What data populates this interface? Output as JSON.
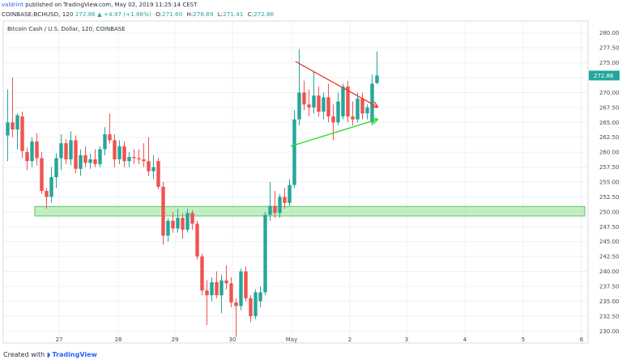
{
  "header": {
    "author": "valdrint",
    "published_text": "published on TradingView.com, May 02, 2019 11:25:14 CEST",
    "symbol": "COINBASE:BCHUSD, 120",
    "last": "272.86",
    "change": "▲ +4.97 (+1.86%)",
    "o_label": "O:",
    "o_val": "271.60",
    "h_label": "H:",
    "h_val": "276.89",
    "l_label": "L:",
    "l_val": "271.41",
    "c_label": "C:",
    "c_val": "272.86"
  },
  "footer": {
    "created_with": "Created with",
    "brand": "TradingView"
  },
  "colors": {
    "up": "#26a69a",
    "down": "#ef5350",
    "zone": "#8ee68e",
    "zone_border": "#4caf50",
    "resistance": "#e53935",
    "support": "#22dd22",
    "grid": "#eef0f4"
  },
  "chart_data": {
    "type": "candlestick",
    "title": "Bitcoin Cash / U.S. Dollar, 120, COINBASE",
    "x_ticks": [
      "27",
      "28",
      "29",
      "30",
      "May",
      "2",
      "3",
      "4",
      "5",
      "6"
    ],
    "y_ticks": [
      "230.00",
      "232.50",
      "235.00",
      "237.50",
      "240.00",
      "242.50",
      "245.00",
      "247.50",
      "250.00",
      "252.50",
      "255.00",
      "257.50",
      "260.00",
      "262.50",
      "265.00",
      "267.50",
      "270.00",
      "272.50",
      "275.00",
      "277.50",
      "280.00"
    ],
    "ylim": [
      228.0,
      282.0
    ],
    "last_price": "272.86",
    "support_zone": [
      249.3,
      250.9
    ],
    "resistance_line": [
      [
        0.0,
        275.2
      ],
      [
        5.25,
        267.6
      ]
    ],
    "support_line": [
      [
        0.0,
        261.0
      ],
      [
        5.25,
        265.5
      ]
    ],
    "candles": [
      {
        "x": 0.0,
        "o": 262.8,
        "h": 270.5,
        "l": 258.5,
        "c": 265.0
      },
      {
        "x": 0.25,
        "o": 265.0,
        "h": 272.5,
        "l": 262.5,
        "c": 263.8
      },
      {
        "x": 0.5,
        "o": 263.8,
        "h": 266.5,
        "l": 260.5,
        "c": 266.2
      },
      {
        "x": 0.75,
        "o": 266.0,
        "h": 266.8,
        "l": 259.0,
        "c": 260.2
      },
      {
        "x": 1.0,
        "o": 260.0,
        "h": 260.8,
        "l": 257.0,
        "c": 258.5
      },
      {
        "x": 1.25,
        "o": 258.5,
        "h": 262.5,
        "l": 257.5,
        "c": 261.8
      },
      {
        "x": 1.5,
        "o": 261.8,
        "h": 263.2,
        "l": 257.8,
        "c": 259.0
      },
      {
        "x": 1.75,
        "o": 259.0,
        "h": 260.0,
        "l": 253.0,
        "c": 253.5
      },
      {
        "x": 2.0,
        "o": 253.5,
        "h": 254.0,
        "l": 250.5,
        "c": 252.5
      },
      {
        "x": 2.25,
        "o": 252.5,
        "h": 257.5,
        "l": 251.5,
        "c": 255.8
      },
      {
        "x": 2.5,
        "o": 255.8,
        "h": 259.8,
        "l": 254.0,
        "c": 259.0
      },
      {
        "x": 2.75,
        "o": 259.0,
        "h": 263.0,
        "l": 257.0,
        "c": 261.5
      },
      {
        "x": 3.0,
        "o": 261.5,
        "h": 262.2,
        "l": 258.0,
        "c": 258.8
      },
      {
        "x": 3.25,
        "o": 258.8,
        "h": 263.5,
        "l": 257.8,
        "c": 262.0
      },
      {
        "x": 3.5,
        "o": 262.0,
        "h": 262.8,
        "l": 256.5,
        "c": 257.2
      },
      {
        "x": 3.75,
        "o": 257.2,
        "h": 260.5,
        "l": 256.0,
        "c": 259.5
      },
      {
        "x": 4.0,
        "o": 259.5,
        "h": 261.0,
        "l": 257.5,
        "c": 258.2
      },
      {
        "x": 4.25,
        "o": 258.2,
        "h": 259.8,
        "l": 257.2,
        "c": 258.8
      },
      {
        "x": 4.5,
        "o": 258.8,
        "h": 260.5,
        "l": 257.5,
        "c": 258.0
      },
      {
        "x": 4.75,
        "o": 258.0,
        "h": 261.0,
        "l": 257.5,
        "c": 260.5
      },
      {
        "x": 5.0,
        "o": 260.5,
        "h": 264.2,
        "l": 259.5,
        "c": 263.0
      },
      {
        "x": 5.25,
        "o": 263.0,
        "h": 266.5,
        "l": 261.5,
        "c": 262.0
      },
      {
        "x": 5.5,
        "o": 262.0,
        "h": 263.0,
        "l": 257.5,
        "c": 258.8
      },
      {
        "x": 5.75,
        "o": 258.8,
        "h": 262.0,
        "l": 258.0,
        "c": 261.0
      },
      {
        "x": 6.0,
        "o": 261.0,
        "h": 261.8,
        "l": 257.5,
        "c": 258.5
      },
      {
        "x": 6.25,
        "o": 258.5,
        "h": 260.0,
        "l": 257.5,
        "c": 259.2
      },
      {
        "x": 6.5,
        "o": 259.2,
        "h": 260.5,
        "l": 258.0,
        "c": 259.0
      },
      {
        "x": 6.75,
        "o": 259.0,
        "h": 260.5,
        "l": 258.0,
        "c": 258.8
      },
      {
        "x": 7.0,
        "o": 258.8,
        "h": 261.5,
        "l": 257.5,
        "c": 258.5
      },
      {
        "x": 7.25,
        "o": 258.5,
        "h": 262.5,
        "l": 256.0,
        "c": 256.8
      },
      {
        "x": 7.5,
        "o": 256.8,
        "h": 259.5,
        "l": 255.5,
        "c": 257.5
      },
      {
        "x": 7.75,
        "o": 258.5,
        "h": 259.0,
        "l": 253.8,
        "c": 254.2
      },
      {
        "x": 8.0,
        "o": 254.2,
        "h": 255.0,
        "l": 244.5,
        "c": 246.0
      },
      {
        "x": 8.25,
        "o": 246.0,
        "h": 249.0,
        "l": 245.0,
        "c": 248.5
      },
      {
        "x": 8.5,
        "o": 248.5,
        "h": 250.0,
        "l": 246.5,
        "c": 247.2
      },
      {
        "x": 8.75,
        "o": 247.2,
        "h": 250.5,
        "l": 246.5,
        "c": 249.0
      },
      {
        "x": 9.0,
        "o": 249.0,
        "h": 249.8,
        "l": 245.5,
        "c": 247.0
      },
      {
        "x": 9.25,
        "o": 247.0,
        "h": 250.5,
        "l": 246.5,
        "c": 249.8
      },
      {
        "x": 9.5,
        "o": 249.8,
        "h": 250.3,
        "l": 247.0,
        "c": 248.0
      },
      {
        "x": 9.75,
        "o": 248.0,
        "h": 248.5,
        "l": 242.0,
        "c": 242.5
      },
      {
        "x": 10.0,
        "o": 242.5,
        "h": 243.0,
        "l": 236.0,
        "c": 236.8
      },
      {
        "x": 10.25,
        "o": 236.8,
        "h": 238.5,
        "l": 231.0,
        "c": 236.0
      },
      {
        "x": 10.5,
        "o": 236.0,
        "h": 239.0,
        "l": 235.0,
        "c": 238.2
      },
      {
        "x": 10.75,
        "o": 238.2,
        "h": 240.0,
        "l": 235.5,
        "c": 236.0
      },
      {
        "x": 11.0,
        "o": 236.0,
        "h": 239.5,
        "l": 233.0,
        "c": 238.5
      },
      {
        "x": 11.25,
        "o": 238.5,
        "h": 241.0,
        "l": 237.0,
        "c": 238.0
      },
      {
        "x": 11.5,
        "o": 238.0,
        "h": 239.0,
        "l": 234.0,
        "c": 234.8
      },
      {
        "x": 11.75,
        "o": 234.8,
        "h": 235.5,
        "l": 229.0,
        "c": 234.2
      },
      {
        "x": 12.0,
        "o": 234.2,
        "h": 240.5,
        "l": 233.5,
        "c": 240.0
      },
      {
        "x": 12.25,
        "o": 240.0,
        "h": 240.8,
        "l": 235.0,
        "c": 235.5
      },
      {
        "x": 12.5,
        "o": 235.5,
        "h": 236.0,
        "l": 231.5,
        "c": 232.5
      },
      {
        "x": 12.75,
        "o": 232.5,
        "h": 237.0,
        "l": 232.0,
        "c": 236.5
      },
      {
        "x": 13.0,
        "o": 235.0,
        "h": 237.5,
        "l": 234.0,
        "c": 236.5
      },
      {
        "x": 13.25,
        "o": 236.5,
        "h": 250.0,
        "l": 236.0,
        "c": 249.5
      },
      {
        "x": 13.5,
        "o": 249.5,
        "h": 255.0,
        "l": 248.5,
        "c": 251.0
      },
      {
        "x": 13.75,
        "o": 251.0,
        "h": 253.5,
        "l": 249.0,
        "c": 249.8
      },
      {
        "x": 14.0,
        "o": 249.8,
        "h": 253.0,
        "l": 249.0,
        "c": 252.5
      },
      {
        "x": 14.25,
        "o": 252.5,
        "h": 254.0,
        "l": 250.5,
        "c": 251.5
      },
      {
        "x": 14.5,
        "o": 251.5,
        "h": 255.5,
        "l": 251.0,
        "c": 254.5
      },
      {
        "x": 14.75,
        "o": 254.5,
        "h": 267.0,
        "l": 254.0,
        "c": 265.5
      },
      {
        "x": 15.0,
        "o": 265.5,
        "h": 277.3,
        "l": 264.5,
        "c": 270.0
      },
      {
        "x": 15.25,
        "o": 270.0,
        "h": 272.0,
        "l": 267.0,
        "c": 268.0
      },
      {
        "x": 15.5,
        "o": 268.0,
        "h": 270.5,
        "l": 266.0,
        "c": 267.5
      },
      {
        "x": 15.75,
        "o": 267.5,
        "h": 273.5,
        "l": 266.5,
        "c": 269.5
      },
      {
        "x": 16.0,
        "o": 269.5,
        "h": 271.0,
        "l": 266.0,
        "c": 266.8
      },
      {
        "x": 16.25,
        "o": 266.8,
        "h": 270.0,
        "l": 265.5,
        "c": 269.2
      },
      {
        "x": 16.5,
        "o": 269.2,
        "h": 271.5,
        "l": 265.0,
        "c": 266.0
      },
      {
        "x": 16.75,
        "o": 266.0,
        "h": 268.0,
        "l": 262.0,
        "c": 265.0
      },
      {
        "x": 17.0,
        "o": 265.0,
        "h": 270.0,
        "l": 264.5,
        "c": 268.5
      },
      {
        "x": 17.25,
        "o": 266.0,
        "h": 271.5,
        "l": 265.5,
        "c": 271.0
      },
      {
        "x": 17.5,
        "o": 271.0,
        "h": 272.0,
        "l": 265.0,
        "c": 266.0
      },
      {
        "x": 17.75,
        "o": 266.0,
        "h": 268.5,
        "l": 264.5,
        "c": 265.5
      },
      {
        "x": 18.0,
        "o": 265.5,
        "h": 270.0,
        "l": 265.0,
        "c": 269.0
      },
      {
        "x": 18.25,
        "o": 269.0,
        "h": 270.0,
        "l": 265.5,
        "c": 266.5
      },
      {
        "x": 18.5,
        "o": 266.5,
        "h": 268.0,
        "l": 265.5,
        "c": 267.5
      },
      {
        "x": 18.75,
        "o": 265.0,
        "h": 273.0,
        "l": 264.5,
        "c": 271.5
      },
      {
        "x": 19.0,
        "o": 271.6,
        "h": 276.89,
        "l": 271.41,
        "c": 272.86
      }
    ]
  }
}
